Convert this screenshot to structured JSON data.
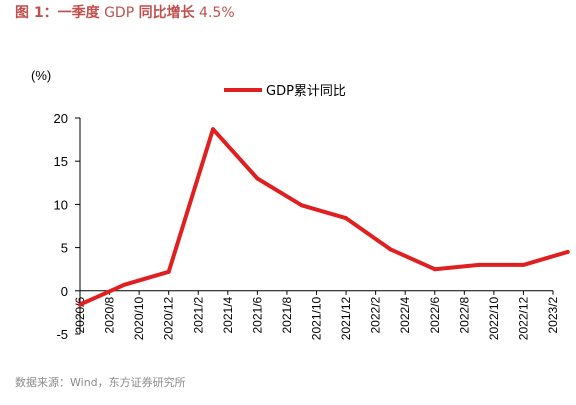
{
  "figure": {
    "title_prefix": "图 1：一季度",
    "title_mid": " GDP ",
    "title_label": "同比增长",
    "title_value": " 4.5%",
    "source": "数据来源：Wind，东方证券研究所"
  },
  "chart_data": {
    "type": "line",
    "ylabel": "(%)",
    "ylim": [
      -5,
      20
    ],
    "yticks": [
      20,
      15,
      10,
      5,
      0,
      -5
    ],
    "categories": [
      "2020/6",
      "2020/8",
      "2020/10",
      "2020/12",
      "2021/2",
      "2021/4",
      "2021/6",
      "2021/8",
      "2021/10",
      "2021/12",
      "2022/2",
      "2022/4",
      "2022/6",
      "2022/8",
      "2022/10",
      "2022/12",
      "2023/2"
    ],
    "series": [
      {
        "name": "GDP累计同比",
        "color": "#e02020",
        "x": [
          "2020/6",
          "2020/9",
          "2020/12",
          "2021/3",
          "2021/6",
          "2021/9",
          "2021/12",
          "2022/3",
          "2022/6",
          "2022/9",
          "2022/12",
          "2023/3"
        ],
        "values": [
          -1.6,
          0.7,
          2.2,
          18.7,
          13.0,
          9.9,
          8.4,
          4.8,
          2.5,
          3.0,
          3.0,
          4.5
        ]
      }
    ],
    "legend": "top-center",
    "grid": false
  }
}
